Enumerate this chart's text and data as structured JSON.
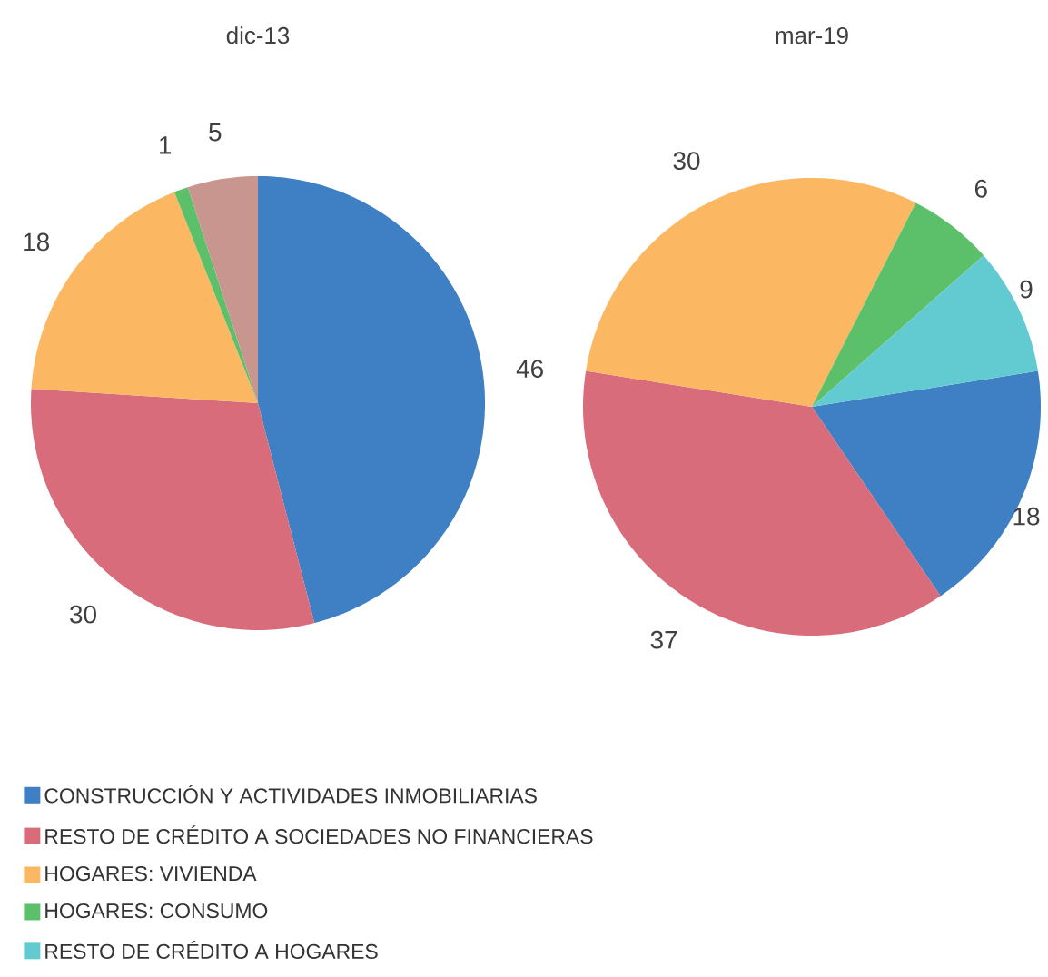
{
  "chart_data": [
    {
      "type": "pie",
      "title": "dic-13",
      "categories": [
        null,
        null,
        null,
        null,
        null
      ],
      "values": [
        46,
        30,
        18,
        1,
        5
      ],
      "colors": [
        "#3f7fc4",
        "#d96c7b",
        "#fbb762",
        "#5cbf6a",
        "#c9968f"
      ],
      "data_labels": true
    },
    {
      "type": "pie",
      "title": "mar-19",
      "categories": [
        "CONSTRUCCIÓN Y ACTIVIDADES INMOBILIARIAS",
        "RESTO DE CRÉDITO A SOCIEDADES NO FINANCIERAS",
        "HOGARES: VIVIENDA",
        "HOGARES: CONSUMO",
        "RESTO DE CRÉDITO A HOGARES"
      ],
      "values": [
        18,
        37,
        30,
        6,
        9
      ],
      "colors": [
        "#3f7fc4",
        "#d96c7b",
        "#fbb762",
        "#5cbf6a",
        "#62cbd2"
      ],
      "data_labels": true,
      "legend": "bottom"
    }
  ]
}
